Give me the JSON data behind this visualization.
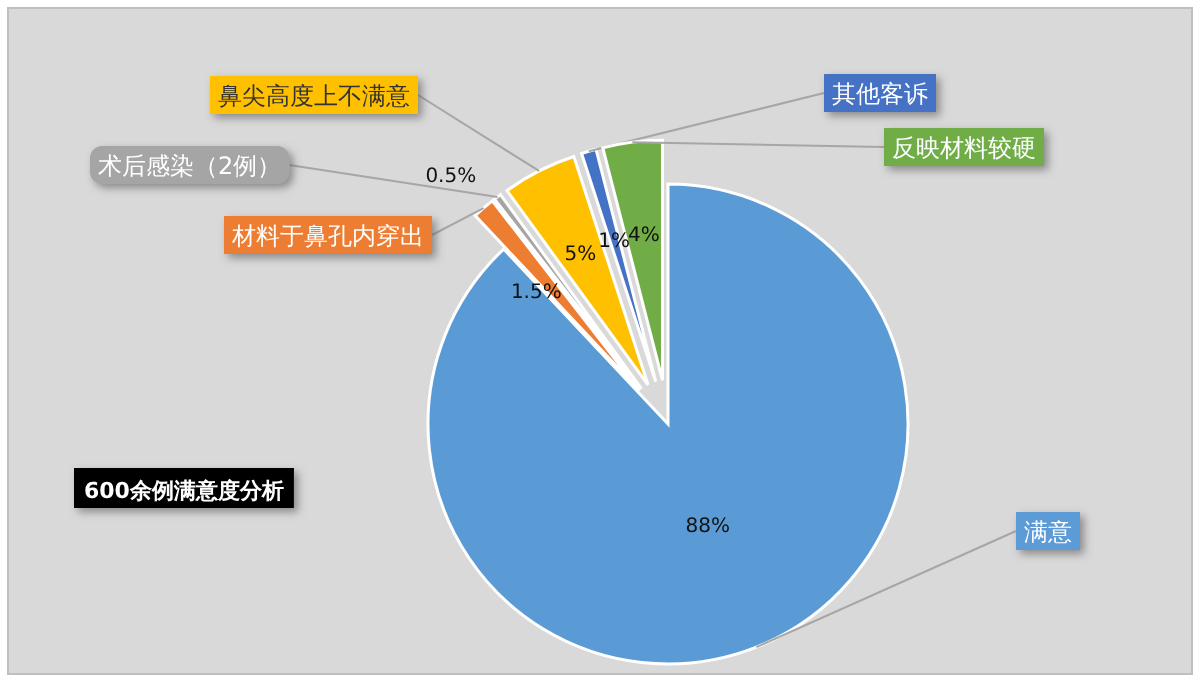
{
  "chart_data": {
    "type": "pie",
    "title": "600余例满意度分析",
    "categories": [
      "满意",
      "材料于鼻孔内穿出",
      "术后感染（2例）",
      "鼻尖高度上不满意",
      "其他客诉",
      "反映材料较硬"
    ],
    "values": [
      88,
      1.5,
      0.5,
      5,
      1,
      4
    ],
    "value_labels": [
      "88%",
      "1.5%",
      "0.5%",
      "5%",
      "1%",
      "4%"
    ],
    "colors": [
      "#5b9bd5",
      "#ed7d31",
      "#a5a5a5",
      "#ffc000",
      "#4472c4",
      "#70ad47"
    ],
    "legend": false
  }
}
